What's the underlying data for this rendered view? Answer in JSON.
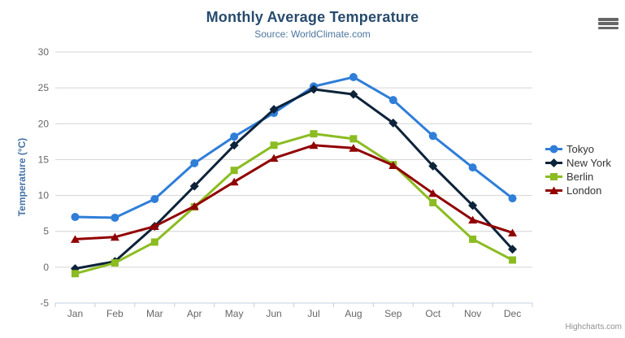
{
  "credits": "Highcharts.com",
  "icons": {
    "menu": "hamburger-menu-icon"
  },
  "colors": {
    "title": "#274b6d",
    "subtitle": "#4d759e",
    "axis_title": "#4572a7",
    "axis_labels": "#666666",
    "grid": "#d4d4d4",
    "axis_line": "#c0d0e0",
    "legend_text": "#333333",
    "credits": "#909090",
    "menu_icon": "#666666",
    "background": "#ffffff"
  },
  "chart_data": {
    "type": "line",
    "title": "Monthly Average Temperature",
    "subtitle": "Source: WorldClimate.com",
    "xlabel": "",
    "ylabel": "Temperature (°C)",
    "categories": [
      "Jan",
      "Feb",
      "Mar",
      "Apr",
      "May",
      "Jun",
      "Jul",
      "Aug",
      "Sep",
      "Oct",
      "Nov",
      "Dec"
    ],
    "ylim": [
      -5,
      30
    ],
    "yticks": [
      -5,
      0,
      5,
      10,
      15,
      20,
      25,
      30
    ],
    "grid": true,
    "legend_position": "right",
    "series": [
      {
        "name": "Tokyo",
        "color": "#2f7ed8",
        "marker": "circle",
        "values": [
          7.0,
          6.9,
          9.5,
          14.5,
          18.2,
          21.5,
          25.2,
          26.5,
          23.3,
          18.3,
          13.9,
          9.6
        ]
      },
      {
        "name": "New York",
        "color": "#0d233a",
        "marker": "diamond",
        "values": [
          -0.2,
          0.8,
          5.7,
          11.3,
          17.0,
          22.0,
          24.8,
          24.1,
          20.1,
          14.1,
          8.6,
          2.5
        ]
      },
      {
        "name": "Berlin",
        "color": "#8bbc21",
        "marker": "square",
        "values": [
          -0.9,
          0.6,
          3.5,
          8.4,
          13.5,
          17.0,
          18.6,
          17.9,
          14.3,
          9.0,
          3.9,
          1.0
        ]
      },
      {
        "name": "London",
        "color": "#910000",
        "marker": "triangle",
        "values": [
          3.9,
          4.2,
          5.7,
          8.5,
          11.9,
          15.2,
          17.0,
          16.6,
          14.2,
          10.3,
          6.6,
          4.8
        ]
      }
    ]
  }
}
